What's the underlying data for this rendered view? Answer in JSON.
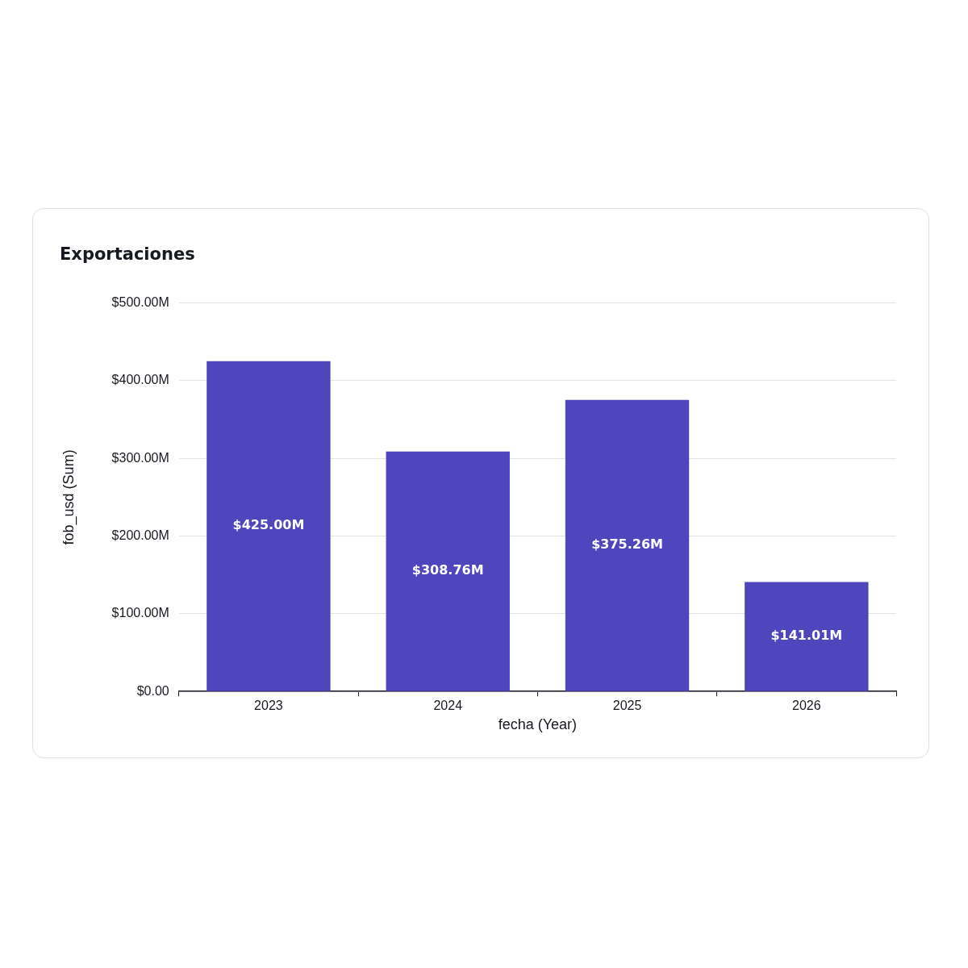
{
  "chart_data": {
    "type": "bar",
    "title": "Exportaciones",
    "xlabel": "fecha (Year)",
    "ylabel": "fob_usd (Sum)",
    "categories": [
      "2023",
      "2024",
      "2025",
      "2026"
    ],
    "values": [
      425.0,
      308.76,
      375.26,
      141.01
    ],
    "value_labels": [
      "$425.00M",
      "$308.76M",
      "$375.26M",
      "$141.01M"
    ],
    "color": "#4f46bd",
    "ylim": [
      0,
      500
    ],
    "yticks": [
      {
        "value": 0,
        "label": "$0.00"
      },
      {
        "value": 100,
        "label": "$100.00M"
      },
      {
        "value": 200,
        "label": "$200.00M"
      },
      {
        "value": 300,
        "label": "$300.00M"
      },
      {
        "value": 400,
        "label": "$400.00M"
      },
      {
        "value": 500,
        "label": "$500.00M"
      }
    ],
    "grid": "y",
    "legend": false
  }
}
